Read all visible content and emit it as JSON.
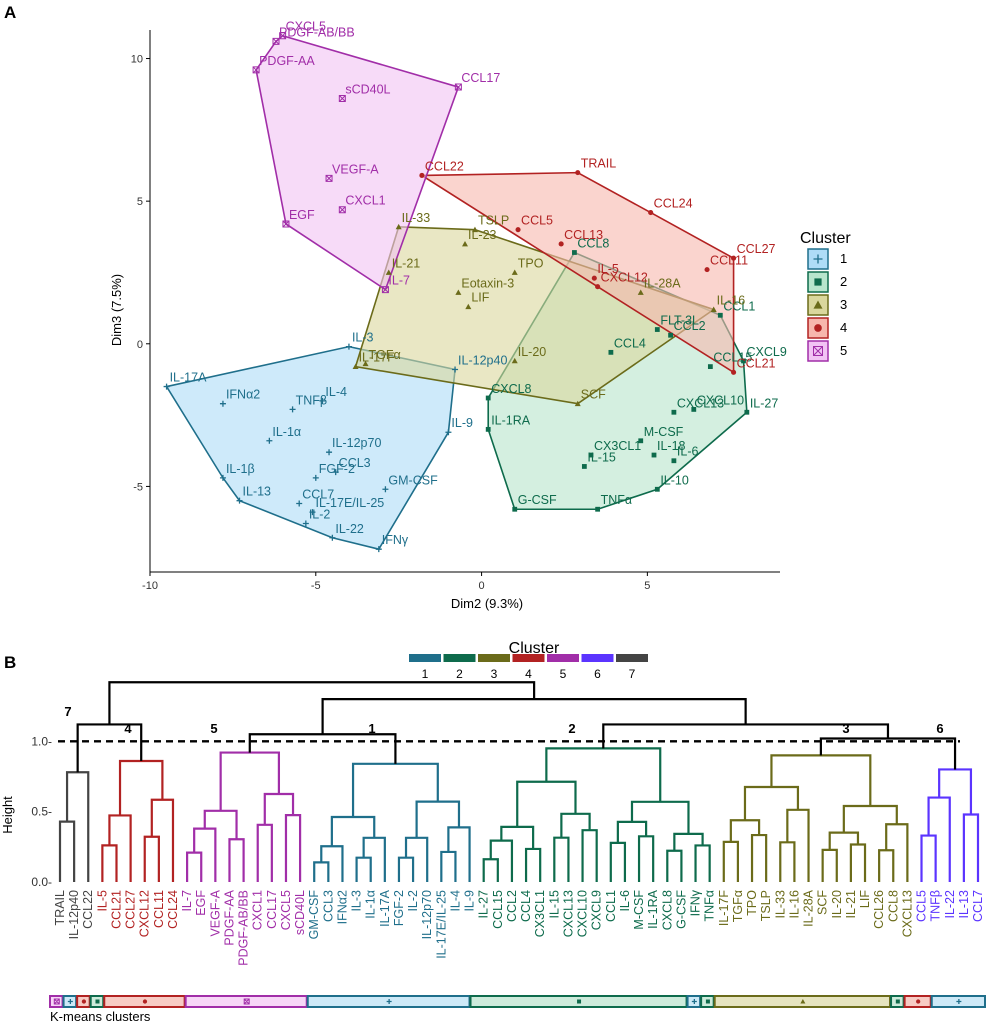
{
  "panel_a": {
    "label": "A",
    "xlabel": "Dim2 (9.3%)",
    "ylabel": "Dim3 (7.5%)",
    "legend_title": "Cluster",
    "legend_placement": "right",
    "chart_data": {
      "type": "scatter",
      "xlim": [
        -10,
        9
      ],
      "ylim": [
        -8,
        11
      ],
      "x_ticks": [
        -10,
        -5,
        0,
        5
      ],
      "y_ticks": [
        -5,
        0,
        5,
        10
      ],
      "grid": false,
      "hulls": true,
      "series": [
        {
          "name": "1",
          "color": "#1f6f8b",
          "fill": "#aedcf7",
          "marker": "plus",
          "points": [
            {
              "label": "IL-17A",
              "x": -9.5,
              "y": -1.5
            },
            {
              "label": "IL-3",
              "x": -4.0,
              "y": -0.1
            },
            {
              "label": "IL-12p40",
              "x": -0.8,
              "y": -0.9
            },
            {
              "label": "IL-9",
              "x": -1.0,
              "y": -3.1
            },
            {
              "label": "IL-4",
              "x": -4.8,
              "y": -2.0
            },
            {
              "label": "TNFβ",
              "x": -5.7,
              "y": -2.3
            },
            {
              "label": "IFNα2",
              "x": -7.8,
              "y": -2.1
            },
            {
              "label": "IL-1α",
              "x": -6.4,
              "y": -3.4
            },
            {
              "label": "IL-12p70",
              "x": -4.6,
              "y": -3.8
            },
            {
              "label": "CCL3",
              "x": -4.4,
              "y": -4.5
            },
            {
              "label": "GM-CSF",
              "x": -2.9,
              "y": -5.1
            },
            {
              "label": "IL-1β",
              "x": -7.8,
              "y": -4.7
            },
            {
              "label": "FGF-2",
              "x": -5.0,
              "y": -4.7
            },
            {
              "label": "IL-13",
              "x": -7.3,
              "y": -5.5
            },
            {
              "label": "CCL7",
              "x": -5.5,
              "y": -5.6
            },
            {
              "label": "IL-17E/IL-25",
              "x": -5.1,
              "y": -5.9
            },
            {
              "label": "IL-2",
              "x": -5.3,
              "y": -6.3
            },
            {
              "label": "IL-22",
              "x": -4.5,
              "y": -6.8
            },
            {
              "label": "IFNγ",
              "x": -3.1,
              "y": -7.2
            }
          ]
        },
        {
          "name": "2",
          "color": "#0e6b4c",
          "fill": "#b7e5cc",
          "marker": "square",
          "points": [
            {
              "label": "CCL8",
              "x": 2.8,
              "y": 3.2
            },
            {
              "label": "CCL1",
              "x": 7.2,
              "y": 1.0
            },
            {
              "label": "FLT-3L",
              "x": 5.3,
              "y": 0.5
            },
            {
              "label": "CCL2",
              "x": 5.7,
              "y": 0.3
            },
            {
              "label": "CCL15",
              "x": 6.9,
              "y": -0.8
            },
            {
              "label": "CXCL9",
              "x": 7.9,
              "y": -0.6
            },
            {
              "label": "CCL4",
              "x": 3.9,
              "y": -0.3
            },
            {
              "label": "CXCL10",
              "x": 6.4,
              "y": -2.3
            },
            {
              "label": "CXCL8",
              "x": 0.2,
              "y": -1.9
            },
            {
              "label": "IL-27",
              "x": 8.0,
              "y": -2.4
            },
            {
              "label": "CXCL13",
              "x": 5.8,
              "y": -2.4
            },
            {
              "label": "IL-1RA",
              "x": 0.2,
              "y": -3.0
            },
            {
              "label": "M-CSF",
              "x": 4.8,
              "y": -3.4
            },
            {
              "label": "CX3CL1",
              "x": 3.3,
              "y": -3.9
            },
            {
              "label": "IL-18",
              "x": 5.2,
              "y": -3.9
            },
            {
              "label": "IL-6",
              "x": 5.8,
              "y": -4.1
            },
            {
              "label": "IL-15",
              "x": 3.1,
              "y": -4.3
            },
            {
              "label": "IL-10",
              "x": 5.3,
              "y": -5.1
            },
            {
              "label": "G-CSF",
              "x": 1.0,
              "y": -5.8
            },
            {
              "label": "TNFα",
              "x": 3.5,
              "y": -5.8
            }
          ]
        },
        {
          "name": "3",
          "color": "#6b6b1a",
          "fill": "#dad79d",
          "marker": "triangle",
          "points": [
            {
              "label": "TSLP",
              "x": -0.2,
              "y": 4.0
            },
            {
              "label": "IL-33",
              "x": -2.5,
              "y": 4.1
            },
            {
              "label": "IL-23",
              "x": -0.5,
              "y": 3.5
            },
            {
              "label": "IL-21",
              "x": -2.8,
              "y": 2.5
            },
            {
              "label": "TPO",
              "x": 1.0,
              "y": 2.5
            },
            {
              "label": "Eotaxin-3",
              "x": -0.7,
              "y": 1.8
            },
            {
              "label": "LIF",
              "x": -0.4,
              "y": 1.3
            },
            {
              "label": "IL-28A",
              "x": 4.8,
              "y": 1.8
            },
            {
              "label": "IL-16",
              "x": 7.0,
              "y": 1.2
            },
            {
              "label": "TGFα",
              "x": -3.5,
              "y": -0.7
            },
            {
              "label": "IL-17F",
              "x": -3.8,
              "y": -0.8
            },
            {
              "label": "IL-20",
              "x": 1.0,
              "y": -0.6
            },
            {
              "label": "SCF",
              "x": 2.9,
              "y": -2.1
            }
          ]
        },
        {
          "name": "4",
          "color": "#b22222",
          "fill": "#f7b7ad",
          "marker": "circle",
          "points": [
            {
              "label": "CCL22",
              "x": -1.8,
              "y": 5.9
            },
            {
              "label": "TRAIL",
              "x": 2.9,
              "y": 6.0
            },
            {
              "label": "CCL24",
              "x": 5.1,
              "y": 4.6
            },
            {
              "label": "CCL5",
              "x": 1.1,
              "y": 4.0
            },
            {
              "label": "CCL13",
              "x": 2.4,
              "y": 3.5
            },
            {
              "label": "IL-5",
              "x": 3.4,
              "y": 2.3
            },
            {
              "label": "CCL27",
              "x": 7.6,
              "y": 3.0
            },
            {
              "label": "CCL11",
              "x": 6.8,
              "y": 2.6
            },
            {
              "label": "CXCL12",
              "x": 3.5,
              "y": 2.0
            },
            {
              "label": "CCL21",
              "x": 7.6,
              "y": -1.0
            }
          ]
        },
        {
          "name": "5",
          "color": "#a12ea8",
          "fill": "#f2c3f4",
          "marker": "boxed-x",
          "points": [
            {
              "label": "CXCL5",
              "x": -6.0,
              "y": 10.8
            },
            {
              "label": "PDGF-AB/BB",
              "x": -6.2,
              "y": 10.6
            },
            {
              "label": "PDGF-AA",
              "x": -6.8,
              "y": 9.6
            },
            {
              "label": "CCL17",
              "x": -0.7,
              "y": 9.0
            },
            {
              "label": "sCD40L",
              "x": -4.2,
              "y": 8.6
            },
            {
              "label": "VEGF-A",
              "x": -4.6,
              "y": 5.8
            },
            {
              "label": "CXCL1",
              "x": -4.2,
              "y": 4.7
            },
            {
              "label": "EGF",
              "x": -5.9,
              "y": 4.2
            },
            {
              "label": "IL-7",
              "x": -2.9,
              "y": 1.9
            }
          ]
        }
      ]
    }
  },
  "panel_b": {
    "label": "B",
    "ylabel": "Height",
    "y_ticks": [
      "0.0-",
      "0.5-",
      "1.0-"
    ],
    "legend_title": "Cluster",
    "legend_entries": [
      {
        "label": "1",
        "color": "#1f6f8b"
      },
      {
        "label": "2",
        "color": "#0e6b4c"
      },
      {
        "label": "3",
        "color": "#6b6b1a"
      },
      {
        "label": "4",
        "color": "#b22222"
      },
      {
        "label": "5",
        "color": "#a12ea8"
      },
      {
        "label": "6",
        "color": "#5b34ff"
      },
      {
        "label": "7",
        "color": "#444444"
      }
    ],
    "cluster_numbers": [
      "7",
      "4",
      "5",
      "1",
      "2",
      "3",
      "6"
    ],
    "cut_height": 1.0,
    "bottom_label": "K-means clusters",
    "chart_data": {
      "type": "dendrogram",
      "ylim": [
        0,
        1.45
      ],
      "groups": [
        {
          "cluster": "7",
          "color": "#444444",
          "leaves": [
            "TRAIL",
            "IL-12p40",
            "CCL22"
          ]
        },
        {
          "cluster": "4",
          "color": "#b22222",
          "leaves": [
            "IL-5",
            "CCL21",
            "CCL27",
            "CXCL12",
            "CCL11",
            "CCL24"
          ]
        },
        {
          "cluster": "5",
          "color": "#a12ea8",
          "leaves": [
            "IL-7",
            "EGF",
            "VEGF-A",
            "PDGF-AA",
            "PDGF-AB/BB",
            "CXCL1",
            "CCL17",
            "CXCL5",
            "sCD40L"
          ]
        },
        {
          "cluster": "1",
          "color": "#1f6f8b",
          "leaves": [
            "GM-CSF",
            "CCL3",
            "IFNα2",
            "IL-3",
            "IL-1α",
            "IL-17A",
            "FGF-2",
            "IL-2",
            "IL-12p70",
            "IL-17E/IL-25",
            "IL-4",
            "IL-9"
          ]
        },
        {
          "cluster": "2",
          "color": "#0e6b4c",
          "leaves": [
            "IL-27",
            "CCL15",
            "CCL2",
            "CCL4",
            "CX3CL1",
            "IL-15",
            "CXCL13",
            "CXCL10",
            "CXCL9",
            "CCL1",
            "IL-6",
            "M-CSF",
            "IL-1RA",
            "CXCL8",
            "G-CSF",
            "IFNγ",
            "TNFα"
          ]
        },
        {
          "cluster": "3",
          "color": "#6b6b1a",
          "leaves": [
            "IL-17F",
            "TGFα",
            "TPO",
            "TSLP",
            "IL-33",
            "IL-16",
            "IL-28A",
            "SCF",
            "IL-20",
            "IL-21",
            "LIF",
            "CCL26",
            "CCL8",
            "CXCL13b"
          ]
        },
        {
          "cluster": "6",
          "color": "#5b34ff",
          "leaves": [
            "CCL5",
            "TNFβ",
            "IL-22",
            "IL-13",
            "CCL7"
          ]
        }
      ],
      "kmeans_bar": [
        {
          "cluster": "5",
          "color": "#a12ea8",
          "fill": "#f7d6f7",
          "marker": "boxed-x",
          "span": 1
        },
        {
          "cluster": "1",
          "color": "#1f6f8b",
          "fill": "#cde9f7",
          "marker": "plus",
          "span": 1
        },
        {
          "cluster": "4",
          "color": "#b22222",
          "fill": "#f7cbc4",
          "marker": "circle",
          "span": 1
        },
        {
          "cluster": "2",
          "color": "#0e6b4c",
          "fill": "#cdebdb",
          "marker": "square",
          "span": 1
        },
        {
          "cluster": "4",
          "color": "#b22222",
          "fill": "#f7cbc4",
          "marker": "circle",
          "span": 6
        },
        {
          "cluster": "5",
          "color": "#a12ea8",
          "fill": "#f7d6f7",
          "marker": "boxed-x",
          "span": 9
        },
        {
          "cluster": "1",
          "color": "#1f6f8b",
          "fill": "#cde9f7",
          "marker": "plus",
          "span": 12
        },
        {
          "cluster": "2",
          "color": "#0e6b4c",
          "fill": "#cdebdb",
          "marker": "square",
          "span": 16
        },
        {
          "cluster": "1",
          "color": "#1f6f8b",
          "fill": "#cde9f7",
          "marker": "plus",
          "span": 1
        },
        {
          "cluster": "2",
          "color": "#0e6b4c",
          "fill": "#cdebdb",
          "marker": "square",
          "span": 1
        },
        {
          "cluster": "3",
          "color": "#6b6b1a",
          "fill": "#e6e4bf",
          "marker": "triangle",
          "span": 13
        },
        {
          "cluster": "2",
          "color": "#0e6b4c",
          "fill": "#cdebdb",
          "marker": "square",
          "span": 1
        },
        {
          "cluster": "4",
          "color": "#b22222",
          "fill": "#f7cbc4",
          "marker": "circle",
          "span": 2
        },
        {
          "cluster": "1",
          "color": "#1f6f8b",
          "fill": "#cde9f7",
          "marker": "plus",
          "span": 4
        }
      ]
    }
  }
}
